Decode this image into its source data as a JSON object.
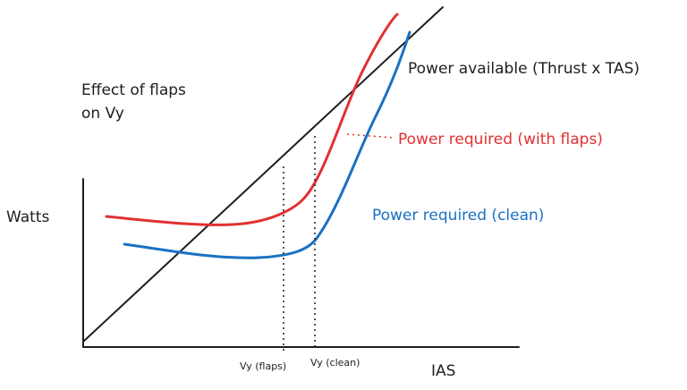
{
  "title_lines": [
    "Effect of flaps",
    "on Vy"
  ],
  "y_axis_label": "Watts",
  "x_axis_label": "IAS",
  "curves": {
    "power_available": {
      "label": "Power available (Thrust x TAS)",
      "color": "#1e1e1e"
    },
    "power_required_flaps": {
      "label": "Power required (with flaps)",
      "color": "#e03131"
    },
    "power_required_clean": {
      "label": "Power required (clean)",
      "color": "#1971c2"
    }
  },
  "markers": {
    "vy_flaps": "Vy (flaps)",
    "vy_clean": "Vy (clean)"
  }
}
